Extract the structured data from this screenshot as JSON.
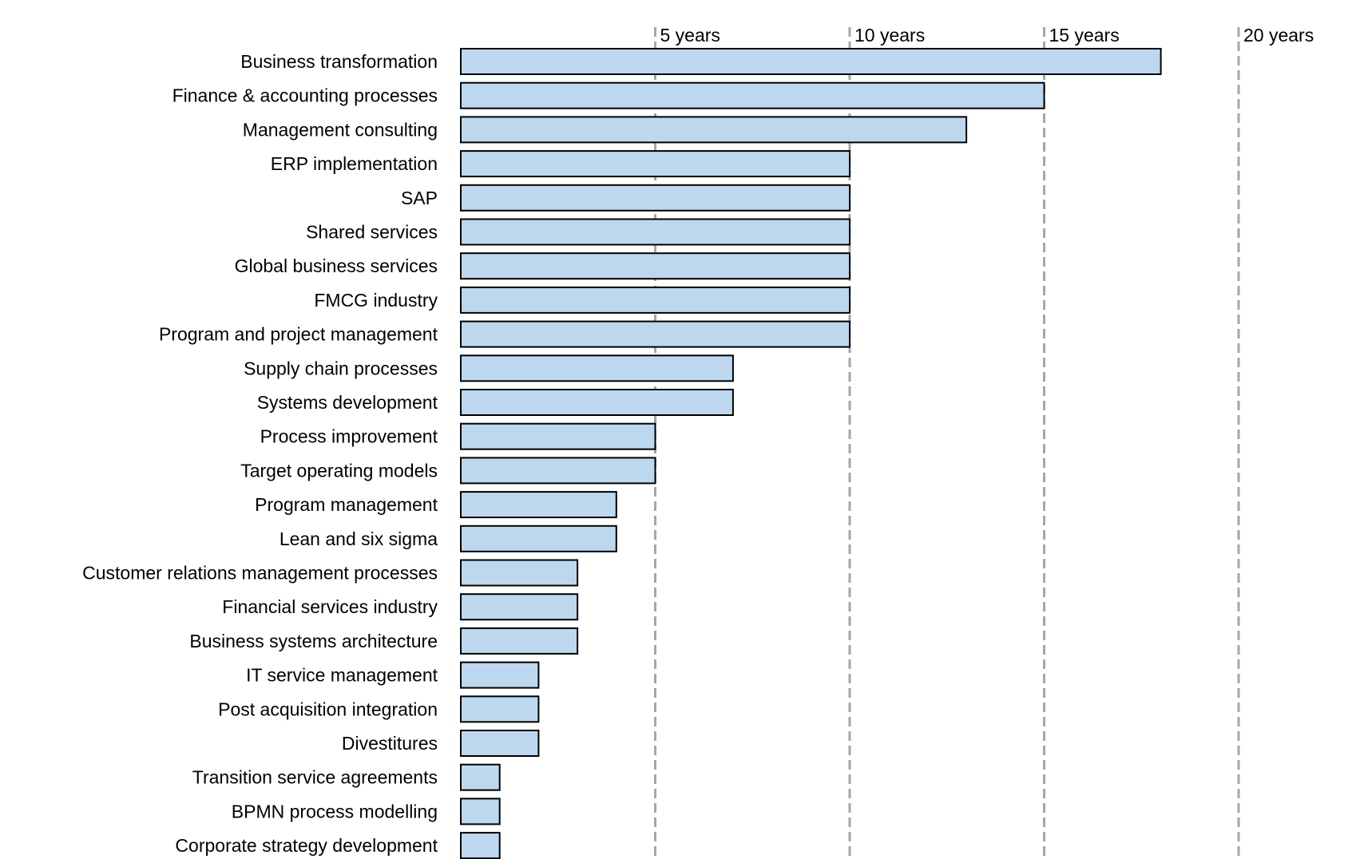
{
  "chart_data": {
    "type": "bar",
    "orientation": "horizontal",
    "title": "",
    "xlabel": "",
    "ylabel": "",
    "xlim": [
      0,
      20
    ],
    "grid": true,
    "grid_style": "dashed",
    "tick_position": "top",
    "ticks": [
      {
        "value": 5,
        "label": "5 years"
      },
      {
        "value": 10,
        "label": "10 years"
      },
      {
        "value": 15,
        "label": "15 years"
      },
      {
        "value": 20,
        "label": "20 years"
      }
    ],
    "categories": [
      "Business transformation",
      "Finance & accounting processes",
      "Management consulting",
      "ERP implementation",
      "SAP",
      "Shared services",
      "Global business services",
      "FMCG industry",
      "Program and project management",
      "Supply chain processes",
      "Systems development",
      "Process improvement",
      "Target operating models",
      "Program management",
      "Lean and six sigma",
      "Customer relations management processes",
      "Financial services industry",
      "Business systems architecture",
      "IT service management",
      "Post acquisition integration",
      "Divestitures",
      "Transition service agreements",
      "BPMN process modelling",
      "Corporate strategy development"
    ],
    "values": [
      18,
      15,
      13,
      10,
      10,
      10,
      10,
      10,
      10,
      7,
      7,
      5,
      5,
      4,
      4,
      3,
      3,
      3,
      2,
      2,
      2,
      1,
      1,
      1
    ],
    "colors": {
      "bar_fill": "#bdd7ee",
      "bar_stroke": "#000000",
      "grid": "#a6a6a6",
      "text": "#000000"
    }
  }
}
